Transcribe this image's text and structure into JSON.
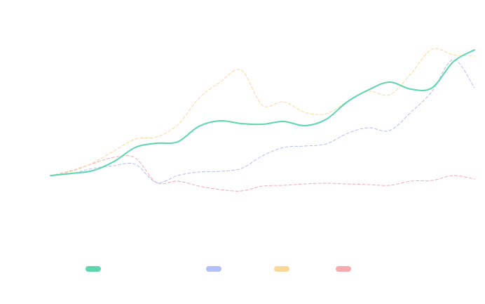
{
  "chart_data": {
    "type": "line",
    "categories": [
      null,
      null,
      null,
      null,
      null,
      null,
      null,
      null,
      null,
      null,
      null,
      null,
      null,
      null,
      null,
      null,
      null,
      null,
      null,
      null,
      null
    ],
    "series": [
      {
        "color": "#5dd6b0",
        "dashed": false,
        "values": [
          0,
          3,
          7,
          20,
          40,
          46,
          48,
          70,
          78,
          74,
          73,
          77,
          71,
          80,
          105,
          122,
          133,
          123,
          125,
          162,
          179
        ]
      },
      {
        "color": "#b3bff7",
        "dashed": true,
        "values": [
          0,
          3,
          10,
          14,
          16,
          -10,
          0,
          5,
          6,
          10,
          28,
          40,
          42,
          45,
          60,
          68,
          64,
          90,
          120,
          165,
          125
        ]
      },
      {
        "color": "#fcd79a",
        "dashed": true,
        "values": [
          0,
          6,
          18,
          35,
          52,
          55,
          72,
          110,
          133,
          150,
          100,
          105,
          90,
          88,
          105,
          120,
          115,
          145,
          180,
          172,
          170
        ]
      },
      {
        "color": "#f7aab0",
        "dashed": true,
        "values": [
          0,
          7,
          17,
          26,
          25,
          -10,
          -8,
          -15,
          -20,
          -22,
          -15,
          -14,
          -12,
          -11,
          -12,
          -13,
          -14,
          -8,
          -7,
          0,
          -5
        ]
      }
    ],
    "ylim": [
      -50,
      200
    ],
    "grid": false,
    "legend": "bottom"
  }
}
